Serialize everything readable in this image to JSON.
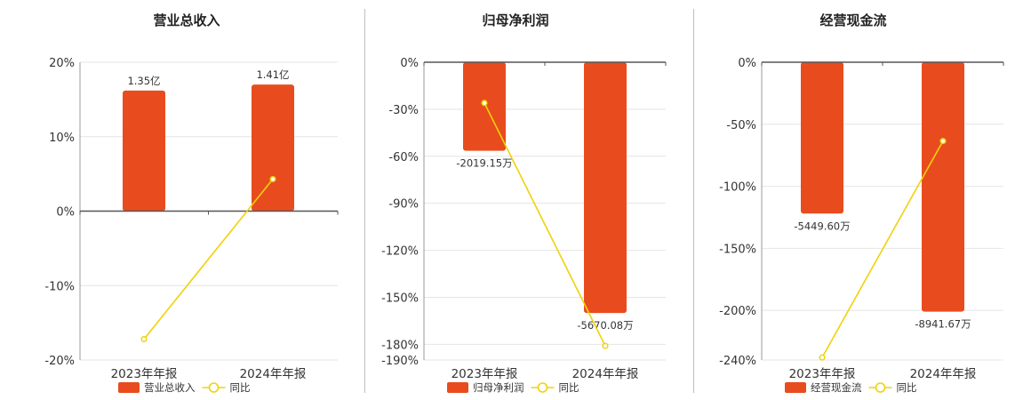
{
  "colors": {
    "bar": "#e84c1e",
    "line": "#f0d20a",
    "axis": "#555555",
    "grid": "#e4e4e4",
    "text": "#333333"
  },
  "legend": {
    "line_label": "同比"
  },
  "chart_data": [
    {
      "type": "bar",
      "title": "营业总收入",
      "categories": [
        "2023年年报",
        "2024年年报"
      ],
      "series": [
        {
          "name": "营业总收入",
          "type": "bar",
          "values": [
            16.2,
            17.0
          ],
          "data_labels": [
            "1.35亿",
            "1.41亿"
          ]
        },
        {
          "name": "同比",
          "type": "line",
          "values": [
            -17.2,
            4.3
          ]
        }
      ],
      "y_ticks": [
        20,
        10,
        0,
        -10,
        -20
      ],
      "y_tick_labels": [
        "20%",
        "10%",
        "0%",
        "-10%",
        "-20%"
      ],
      "ylim": [
        -20,
        20
      ],
      "grid": true,
      "legend_position": "bottom"
    },
    {
      "type": "bar",
      "title": "归母净利润",
      "categories": [
        "2023年年报",
        "2024年年报"
      ],
      "series": [
        {
          "name": "归母净利润",
          "type": "bar",
          "values": [
            -56.5,
            -160.0
          ],
          "data_labels": [
            "-2019.15万",
            "-5670.08万"
          ]
        },
        {
          "name": "同比",
          "type": "line",
          "values": [
            -26.0,
            -181.0
          ]
        }
      ],
      "y_ticks": [
        0,
        -30,
        -60,
        -90,
        -120,
        -150,
        -180,
        -190
      ],
      "y_tick_labels": [
        "0%",
        "-30%",
        "-60%",
        "-90%",
        "-120%",
        "-150%",
        "-180%",
        "-190%"
      ],
      "ylim": [
        -190,
        0
      ],
      "grid": true,
      "legend_position": "bottom"
    },
    {
      "type": "bar",
      "title": "经营现金流",
      "categories": [
        "2023年年报",
        "2024年年报"
      ],
      "series": [
        {
          "name": "经营现金流",
          "type": "bar",
          "values": [
            -122.0,
            -201.0
          ],
          "data_labels": [
            "-5449.60万",
            "-8941.67万"
          ]
        },
        {
          "name": "同比",
          "type": "line",
          "values": [
            -238.0,
            -63.5
          ]
        }
      ],
      "y_ticks": [
        0,
        -50,
        -100,
        -150,
        -200,
        -240
      ],
      "y_tick_labels": [
        "0%",
        "-50%",
        "-100%",
        "-150%",
        "-200%",
        "-240%"
      ],
      "ylim": [
        -240,
        0
      ],
      "grid": true,
      "legend_position": "bottom"
    }
  ]
}
